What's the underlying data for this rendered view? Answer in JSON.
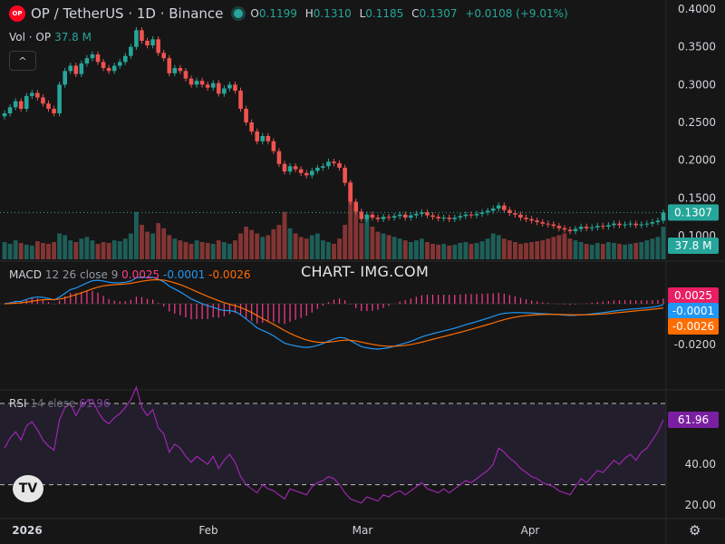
{
  "header": {
    "logo_text": "OP",
    "title": "OP / TetherUS · 1D · Binance",
    "ohlc": [
      {
        "key": "O",
        "value": "0.1199"
      },
      {
        "key": "H",
        "value": "0.1310"
      },
      {
        "key": "L",
        "value": "0.1185"
      },
      {
        "key": "C",
        "value": "0.1307"
      }
    ],
    "change": "+0.0108 (+9.01%)",
    "volume_label": "Vol · OP",
    "volume_value": "37.8 M",
    "collapse_icon": "^"
  },
  "macd_legend": {
    "label": "MACD",
    "params": "12 26 close 9",
    "hist": "0.0025",
    "macd": "-0.0001",
    "signal": "-0.0026"
  },
  "rsi_legend": {
    "label": "RSI",
    "params": "14 close",
    "value": "61.96"
  },
  "watermark": "CHART- IMG.COM",
  "badges": {
    "price": "0.1307",
    "volume": "37.8 M",
    "macd_hist": "0.0025",
    "macd": "-0.0001",
    "signal": "-0.0026",
    "rsi": "61.96"
  },
  "colors": {
    "up": "#26a69a",
    "down": "#ef5350",
    "macd": "#2196f3",
    "signal": "#ff6d00",
    "hist": "#ff3d8b",
    "rsi": "#9c27b0"
  },
  "chart_data": {
    "type": "candlestick",
    "title": "OP / TetherUS · 1D · Binance",
    "price_axis_ticks": [
      "0.4000",
      "0.3500",
      "0.3000",
      "0.2500",
      "0.2000",
      "0.1500",
      "0.1000"
    ],
    "price_range": [
      0.085,
      0.4
    ],
    "macd_axis_ticks": [
      "-0.0200"
    ],
    "rsi_axis_ticks": [
      "40.00",
      "20.00"
    ],
    "rsi_bands": [
      30,
      70
    ],
    "x_ticks": [
      "2026",
      "Feb",
      "Mar",
      "Apr"
    ],
    "close": [
      0.262,
      0.27,
      0.278,
      0.268,
      0.285,
      0.289,
      0.283,
      0.275,
      0.268,
      0.262,
      0.3,
      0.318,
      0.325,
      0.314,
      0.328,
      0.335,
      0.34,
      0.33,
      0.322,
      0.318,
      0.325,
      0.33,
      0.338,
      0.35,
      0.372,
      0.358,
      0.352,
      0.36,
      0.342,
      0.335,
      0.315,
      0.322,
      0.318,
      0.308,
      0.3,
      0.305,
      0.3,
      0.296,
      0.302,
      0.288,
      0.295,
      0.3,
      0.292,
      0.268,
      0.25,
      0.238,
      0.225,
      0.232,
      0.225,
      0.212,
      0.195,
      0.185,
      0.192,
      0.188,
      0.183,
      0.18,
      0.186,
      0.19,
      0.192,
      0.198,
      0.196,
      0.19,
      0.17,
      0.145,
      0.132,
      0.122,
      0.128,
      0.124,
      0.122,
      0.125,
      0.124,
      0.126,
      0.128,
      0.124,
      0.127,
      0.129,
      0.131,
      0.127,
      0.125,
      0.123,
      0.124,
      0.122,
      0.124,
      0.126,
      0.128,
      0.127,
      0.129,
      0.131,
      0.133,
      0.136,
      0.14,
      0.134,
      0.13,
      0.128,
      0.124,
      0.122,
      0.12,
      0.118,
      0.116,
      0.115,
      0.113,
      0.11,
      0.108,
      0.106,
      0.109,
      0.112,
      0.11,
      0.111,
      0.113,
      0.112,
      0.114,
      0.116,
      0.114,
      0.115,
      0.116,
      0.114,
      0.115,
      0.116,
      0.118,
      0.12,
      0.1307
    ],
    "volume_m": [
      20,
      18,
      22,
      19,
      17,
      16,
      21,
      19,
      18,
      20,
      30,
      28,
      22,
      20,
      24,
      26,
      22,
      18,
      20,
      19,
      22,
      21,
      24,
      30,
      55,
      40,
      32,
      30,
      42,
      36,
      28,
      24,
      22,
      20,
      18,
      22,
      20,
      19,
      18,
      22,
      20,
      18,
      22,
      30,
      38,
      34,
      30,
      26,
      28,
      35,
      40,
      55,
      36,
      30,
      26,
      24,
      28,
      30,
      22,
      20,
      18,
      24,
      40,
      90,
      60,
      42,
      50,
      38,
      32,
      30,
      28,
      26,
      24,
      22,
      20,
      22,
      24,
      20,
      18,
      17,
      18,
      16,
      17,
      19,
      20,
      18,
      19,
      21,
      24,
      30,
      28,
      24,
      22,
      20,
      18,
      19,
      20,
      21,
      22,
      24,
      26,
      28,
      30,
      24,
      22,
      20,
      18,
      17,
      19,
      18,
      20,
      19,
      18,
      17,
      18,
      19,
      20,
      22,
      24,
      26,
      37.8
    ],
    "macd_current": {
      "macd": -0.0001,
      "signal": -0.0026,
      "histogram": 0.0025
    },
    "rsi_current": 61.96,
    "rsi": [
      48,
      53,
      56,
      52,
      59,
      61,
      57,
      52,
      49,
      47,
      62,
      68,
      70,
      64,
      69,
      71,
      72,
      66,
      62,
      60,
      63,
      65,
      68,
      72,
      78,
      68,
      64,
      67,
      58,
      55,
      46,
      50,
      48,
      44,
      41,
      44,
      42,
      40,
      44,
      38,
      42,
      45,
      41,
      34,
      30,
      28,
      26,
      30,
      28,
      27,
      25,
      23,
      28,
      27,
      26,
      25,
      29,
      31,
      32,
      34,
      33,
      30,
      26,
      23,
      22,
      21,
      24,
      23,
      22,
      25,
      24,
      26,
      27,
      25,
      27,
      29,
      31,
      28,
      27,
      26,
      28,
      26,
      28,
      30,
      32,
      31,
      33,
      35,
      37,
      40,
      48,
      46,
      43,
      41,
      38,
      36,
      34,
      33,
      31,
      30,
      29,
      27,
      26,
      25,
      29,
      33,
      31,
      34,
      37,
      36,
      39,
      42,
      40,
      43,
      45,
      42,
      46,
      48,
      52,
      56,
      61.96
    ]
  }
}
